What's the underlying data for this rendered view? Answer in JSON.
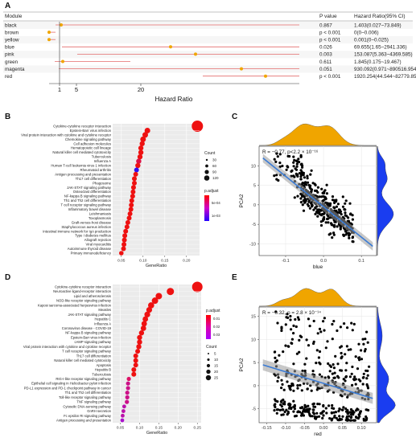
{
  "labels": {
    "A": "A",
    "B": "B",
    "C": "C",
    "D": "D",
    "E": "E"
  },
  "colors": {
    "accent": "#f0a500",
    "point_red": "#e0241c",
    "whisker": "#e46b6b",
    "blue": "#1a3df0",
    "line": "#3a7bd5",
    "magenta": "#ff00ff"
  },
  "chart_data": [
    {
      "type": "forest",
      "panel": "A",
      "columns": {
        "module": "Module",
        "p": "P value",
        "hr": "Hazard Ratio(95% CI)"
      },
      "xlabel": "Hazard Ratio",
      "xticks": [
        1,
        5,
        20
      ],
      "rows": [
        {
          "module": "black",
          "p": "0.867",
          "hr": "1.403(0.027~73.849)",
          "est": 1.403
        },
        {
          "module": "brown",
          "p": "p < 0.001",
          "hr": "0(0~0.006)",
          "est": 0
        },
        {
          "module": "yellow",
          "p": "p < 0.001",
          "hr": "0.001(0~0.025)",
          "est": 0.001
        },
        {
          "module": "blue",
          "p": "0.026",
          "hr": "69.655(1.65~2941.336)",
          "est": 69.655
        },
        {
          "module": "pink",
          "p": "0.003",
          "hr": "153.087(5.363~4369.585)",
          "est": 153.087
        },
        {
          "module": "green",
          "p": "0.611",
          "hr": "1.845(0.175~19.467)",
          "est": 1.845
        },
        {
          "module": "magenta",
          "p": "0.051",
          "hr": "930.092(0.971~890516.954)",
          "est": 930.092
        },
        {
          "module": "red",
          "p": "p < 0.001",
          "hr": "1920.254(44.544~82779.856)",
          "est": 1920.254
        }
      ]
    },
    {
      "type": "dot",
      "panel": "B",
      "xlabel": "GeneRatio",
      "xticks": [
        "0.05",
        "0.10",
        "0.15",
        "0.20"
      ],
      "xlim": [
        0.03,
        0.23
      ],
      "legend": {
        "count_title": "Count",
        "count_values": [
          "30",
          "60",
          "90",
          "120"
        ],
        "padj_title": "p.adjust",
        "padj_ticks": [
          "5e-04",
          "1e-03"
        ]
      },
      "terms": [
        "Cytokine-cytokine receptor interaction",
        "Epstein-Barr virus infection",
        "Viral protein interaction with cytokine and cytokine receptor",
        "Chemokine signaling pathway",
        "Cell adhesion molecules",
        "Hematopoietic cell lineage",
        "Natural killer cell mediated cytotoxicity",
        "Tuberculosis",
        "Influenza A",
        "Human T-cell leukemia virus 1 infection",
        "Rheumatoid arthritis",
        "Antigen processing and presentation",
        "Th17 cell differentiation",
        "Phagosome",
        "JAK-STAT signaling pathway",
        "Osteoclast differentiation",
        "NF-kappa B signaling pathway",
        "Th1 and Th2 cell differentiation",
        "T cell receptor signaling pathway",
        "Inflammatory bowel disease",
        "Leishmaniasis",
        "Toxoplasmosis",
        "Graft-versus-host disease",
        "Staphylococcus aureus infection",
        "Intestinal immune network for IgA production",
        "Type I diabetes mellitus",
        "Allograft rejection",
        "Viral myocarditis",
        "Autoimmune thyroid disease",
        "Primary immunodeficiency"
      ],
      "ratios": [
        0.225,
        0.11,
        0.105,
        0.1,
        0.098,
        0.095,
        0.095,
        0.093,
        0.09,
        0.088,
        0.085,
        0.083,
        0.08,
        0.08,
        0.078,
        0.077,
        0.076,
        0.074,
        0.073,
        0.072,
        0.07,
        0.068,
        0.065,
        0.063,
        0.06,
        0.058,
        0.057,
        0.056,
        0.055,
        0.05
      ],
      "padj_colors": [
        "#ee1111",
        "#ee1111",
        "#ee1111",
        "#ee1111",
        "#ee1111",
        "#ee1111",
        "#ee1111",
        "#ee1111",
        "#dd1144",
        "#ee1111",
        "#3311ee",
        "#ee1111",
        "#ee1111",
        "#ee1111",
        "#ee1111",
        "#ee1111",
        "#ee1111",
        "#ee1111",
        "#ee1111",
        "#ee1111",
        "#ee1111",
        "#ee1111",
        "#ee1111",
        "#ee1111",
        "#ee1111",
        "#ee1111",
        "#ee1111",
        "#ee1111",
        "#ee1111",
        "#ee1111"
      ],
      "sizes": [
        7,
        3.5,
        3.5,
        3.5,
        3.2,
        3.2,
        3.2,
        3.2,
        3.2,
        3.2,
        3,
        3,
        3,
        3,
        3,
        3,
        3,
        3,
        3,
        3,
        3,
        3,
        3,
        3,
        3,
        3,
        3,
        3,
        3,
        2.8
      ]
    },
    {
      "type": "scatter",
      "panel": "C",
      "annotation": "R = −0.77, p<2.2 × 10⁻¹⁶",
      "xlabel": "blue",
      "ylabel": "PCA2",
      "xticks": [
        "-0.1",
        "0.0",
        "0.1"
      ],
      "yticks": [
        "10",
        "5",
        "0",
        "-5",
        "-10"
      ],
      "xlim": [
        -0.17,
        0.14
      ],
      "ylim": [
        -13,
        15
      ],
      "slope": -78,
      "intercept": -0.5
    },
    {
      "type": "dot",
      "panel": "D",
      "xlabel": "GeneRatio",
      "xticks": [
        "0.05",
        "0.10",
        "0.15",
        "0.20",
        "0.25"
      ],
      "xlim": [
        0.03,
        0.26
      ],
      "legend": {
        "padj_title": "p.adjust",
        "padj_ticks": [
          "0.01",
          "0.02",
          "0.03"
        ],
        "count_title": "Count",
        "count_values": [
          "5",
          "10",
          "15",
          "20",
          "25"
        ]
      },
      "terms": [
        "Cytokine-cytokine receptor interaction",
        "Neuroactive ligand-receptor interaction",
        "Lipid and atherosclerosis",
        "NOD-like receptor signaling pathway",
        "Kaposi sarcoma-associated herpesvirus infection",
        "Measles",
        "JAK-STAT signaling pathway",
        "Hepatitis C",
        "Influenza A",
        "Coronavirus disease - COVID-19",
        "NF-kappa B signaling pathway",
        "Epstein-Barr virus infection",
        "cAMP signaling pathway",
        "Viral protein interaction with cytokine and cytokine receptor",
        "T cell receptor signaling pathway",
        "Th17 cell differentiation",
        "Natural killer cell mediated cytotoxicity",
        "Apoptosis",
        "Hepatitis B",
        "Tuberculosis",
        "RIG-I-like receptor signaling pathway",
        "Epithelial cell signaling in Helicobacter pylori infection",
        "PD-L1 expression and PD-1 checkpoint pathway in cancer",
        "Th1 and Th2 cell differentiation",
        "Toll-like receptor signaling pathway",
        "TNF signaling pathway",
        "Cytosolic DNA-sensing pathway",
        "GnRH secretion",
        "Fc epsilon RI signaling pathway",
        "Antigen processing and presentation"
      ],
      "ratios": [
        0.25,
        0.18,
        0.15,
        0.14,
        0.13,
        0.125,
        0.12,
        0.115,
        0.112,
        0.11,
        0.105,
        0.1,
        0.1,
        0.098,
        0.095,
        0.09,
        0.09,
        0.09,
        0.085,
        0.085,
        0.072,
        0.07,
        0.07,
        0.068,
        0.068,
        0.067,
        0.06,
        0.058,
        0.056,
        0.055
      ],
      "padj_colors": [
        "#ee1111",
        "#ee1111",
        "#ee1111",
        "#ee1111",
        "#ee1111",
        "#ee1111",
        "#ee1111",
        "#ee1111",
        "#ee1111",
        "#ee1111",
        "#ee1111",
        "#ee1111",
        "#ee1111",
        "#ee1111",
        "#ee1111",
        "#ee1111",
        "#ee1111",
        "#ee1111",
        "#ee1111",
        "#ee1111",
        "#dd1166",
        "#cc1188",
        "#cc1188",
        "#cc1188",
        "#cc1188",
        "#cc1188",
        "#bb11aa",
        "#bb11aa",
        "#bb11aa",
        "#aa11cc"
      ],
      "sizes": [
        6.5,
        4.5,
        4,
        4,
        3.8,
        3.6,
        3.6,
        3.4,
        3.4,
        3.4,
        3.2,
        3.2,
        3.2,
        3.2,
        3,
        3,
        3,
        3,
        3,
        3,
        2.6,
        2.6,
        2.6,
        2.6,
        2.6,
        2.6,
        2.4,
        2.4,
        2.4,
        2.4
      ]
    },
    {
      "type": "scatter",
      "panel": "E",
      "annotation": "R = −0.32, p = 2.8 × 10⁻¹⁴",
      "xlabel": "red",
      "ylabel": "PCA2",
      "xticks": [
        "-0.15",
        "-0.10",
        "-0.05",
        "0.00",
        "0.05",
        "0.10"
      ],
      "yticks": [
        "15",
        "10",
        "5",
        "0",
        "-5"
      ],
      "xlim": [
        -0.17,
        0.14
      ],
      "ylim": [
        -8,
        17
      ],
      "slope": -25,
      "intercept": 0.5
    }
  ]
}
